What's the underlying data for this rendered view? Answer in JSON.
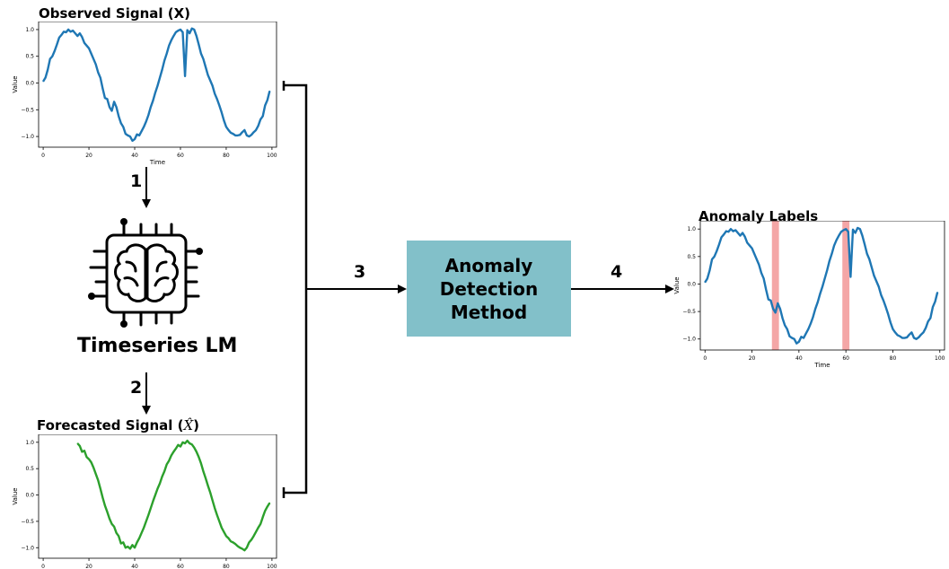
{
  "plots": {
    "observed": {
      "title": "Observed Signal (X)",
      "xlabel": "Time",
      "ylabel": "Value",
      "x_ticks": [
        "0",
        "20",
        "40",
        "60",
        "80",
        "100"
      ],
      "y_ticks": [
        "1.0",
        "0.5",
        "0.0",
        "−0.5",
        "−1.0"
      ]
    },
    "forecasted": {
      "title": "Forecasted Signal (",
      "title_symbol": "X̂",
      "title_end": ")",
      "xlabel": "Time",
      "ylabel": "Value",
      "x_ticks": [
        "0",
        "20",
        "40",
        "60",
        "80",
        "100"
      ],
      "y_ticks": [
        "1.0",
        "0.5",
        "0.0",
        "−0.5",
        "−1.0"
      ]
    },
    "labels": {
      "title": "Anomaly Labels",
      "xlabel": "Time",
      "ylabel": "Value",
      "x_ticks": [
        "0",
        "20",
        "40",
        "60",
        "80",
        "100"
      ],
      "y_ticks": [
        "1.0",
        "0.5",
        "0.0",
        "−0.5",
        "−1.0"
      ]
    }
  },
  "model": {
    "label": "Timeseries LM",
    "icon": "brain-chip-icon"
  },
  "method": {
    "line1": "Anomaly",
    "line2": "Detection",
    "line3": "Method",
    "color": "#82c0c9"
  },
  "steps": {
    "s1": "1",
    "s2": "2",
    "s3": "3",
    "s4": "4"
  },
  "chart_data": [
    {
      "type": "line",
      "title": "Observed Signal (X)",
      "xlabel": "Time",
      "ylabel": "Value",
      "xlim": [
        -2,
        102
      ],
      "ylim": [
        -1.2,
        1.15
      ],
      "color": "#1f77b4",
      "x": [
        0,
        1,
        2,
        3,
        4,
        5,
        6,
        7,
        8,
        9,
        10,
        11,
        12,
        13,
        14,
        15,
        16,
        17,
        18,
        19,
        20,
        21,
        22,
        23,
        24,
        25,
        26,
        27,
        28,
        29,
        30,
        31,
        32,
        33,
        34,
        35,
        36,
        37,
        38,
        39,
        40,
        41,
        42,
        43,
        44,
        45,
        46,
        47,
        48,
        49,
        50,
        51,
        52,
        53,
        54,
        55,
        56,
        57,
        58,
        59,
        60,
        61,
        62,
        63,
        64,
        65,
        66,
        67,
        68,
        69,
        70,
        71,
        72,
        73,
        74,
        75,
        76,
        77,
        78,
        79,
        80,
        81,
        82,
        83,
        84,
        85,
        86,
        87,
        88,
        89,
        90,
        91,
        92,
        93,
        94,
        95,
        96,
        97,
        98,
        99
      ],
      "y": [
        0.03,
        0.1,
        0.25,
        0.45,
        0.5,
        0.6,
        0.72,
        0.85,
        0.9,
        0.96,
        0.95,
        1.0,
        0.96,
        0.98,
        0.93,
        0.88,
        0.93,
        0.86,
        0.75,
        0.7,
        0.65,
        0.55,
        0.45,
        0.35,
        0.2,
        0.1,
        -0.1,
        -0.28,
        -0.3,
        -0.45,
        -0.52,
        -0.35,
        -0.45,
        -0.62,
        -0.75,
        -0.82,
        -0.95,
        -0.98,
        -1.0,
        -1.08,
        -1.05,
        -0.96,
        -0.98,
        -0.9,
        -0.82,
        -0.72,
        -0.6,
        -0.45,
        -0.33,
        -0.18,
        -0.05,
        0.1,
        0.25,
        0.42,
        0.55,
        0.7,
        0.8,
        0.88,
        0.95,
        0.98,
        1.0,
        0.95,
        0.13,
        0.99,
        0.93,
        1.02,
        1.0,
        0.88,
        0.72,
        0.55,
        0.45,
        0.3,
        0.15,
        0.05,
        -0.05,
        -0.2,
        -0.3,
        -0.42,
        -0.55,
        -0.7,
        -0.82,
        -0.88,
        -0.93,
        -0.95,
        -0.98,
        -0.98,
        -0.97,
        -0.92,
        -0.88,
        -0.98,
        -1.0,
        -0.97,
        -0.92,
        -0.88,
        -0.8,
        -0.68,
        -0.62,
        -0.42,
        -0.32,
        -0.15
      ],
      "anomaly_indices": [
        30,
        62
      ]
    },
    {
      "type": "line",
      "title": "Forecasted Signal (X̂)",
      "xlabel": "Time",
      "ylabel": "Value",
      "xlim": [
        -2,
        102
      ],
      "ylim": [
        -1.2,
        1.15
      ],
      "color": "#2ca02c",
      "x": [
        15,
        16,
        17,
        18,
        19,
        20,
        21,
        22,
        23,
        24,
        25,
        26,
        27,
        28,
        29,
        30,
        31,
        32,
        33,
        34,
        35,
        36,
        37,
        38,
        39,
        40,
        41,
        42,
        43,
        44,
        45,
        46,
        47,
        48,
        49,
        50,
        51,
        52,
        53,
        54,
        55,
        56,
        57,
        58,
        59,
        60,
        61,
        62,
        63,
        64,
        65,
        66,
        67,
        68,
        69,
        70,
        71,
        72,
        73,
        74,
        75,
        76,
        77,
        78,
        79,
        80,
        81,
        82,
        83,
        84,
        85,
        86,
        87,
        88,
        89,
        90,
        91,
        92,
        93,
        94,
        95,
        96,
        97,
        98,
        99
      ],
      "y": [
        0.98,
        0.93,
        0.82,
        0.84,
        0.72,
        0.68,
        0.62,
        0.52,
        0.4,
        0.28,
        0.12,
        -0.05,
        -0.2,
        -0.32,
        -0.45,
        -0.55,
        -0.6,
        -0.72,
        -0.78,
        -0.92,
        -0.9,
        -1.0,
        -0.98,
        -1.02,
        -0.95,
        -1.0,
        -0.9,
        -0.82,
        -0.72,
        -0.62,
        -0.5,
        -0.38,
        -0.25,
        -0.12,
        0.0,
        0.12,
        0.22,
        0.35,
        0.45,
        0.58,
        0.65,
        0.75,
        0.82,
        0.88,
        0.95,
        0.92,
        1.0,
        0.98,
        1.03,
        0.98,
        0.96,
        0.9,
        0.82,
        0.72,
        0.6,
        0.45,
        0.32,
        0.18,
        0.05,
        -0.1,
        -0.25,
        -0.38,
        -0.5,
        -0.62,
        -0.7,
        -0.78,
        -0.82,
        -0.88,
        -0.9,
        -0.93,
        -0.97,
        -1.0,
        -1.02,
        -1.05,
        -1.0,
        -0.9,
        -0.85,
        -0.78,
        -0.7,
        -0.62,
        -0.55,
        -0.42,
        -0.3,
        -0.22,
        -0.15
      ]
    },
    {
      "type": "line",
      "title": "Anomaly Labels",
      "xlabel": "Time",
      "ylabel": "Value",
      "xlim": [
        -2,
        102
      ],
      "ylim": [
        -1.2,
        1.15
      ],
      "color": "#1f77b4",
      "highlight_color": "#f4a6a6",
      "highlight_ranges": [
        [
          28.5,
          31.5
        ],
        [
          58.5,
          61.5
        ]
      ]
    }
  ]
}
